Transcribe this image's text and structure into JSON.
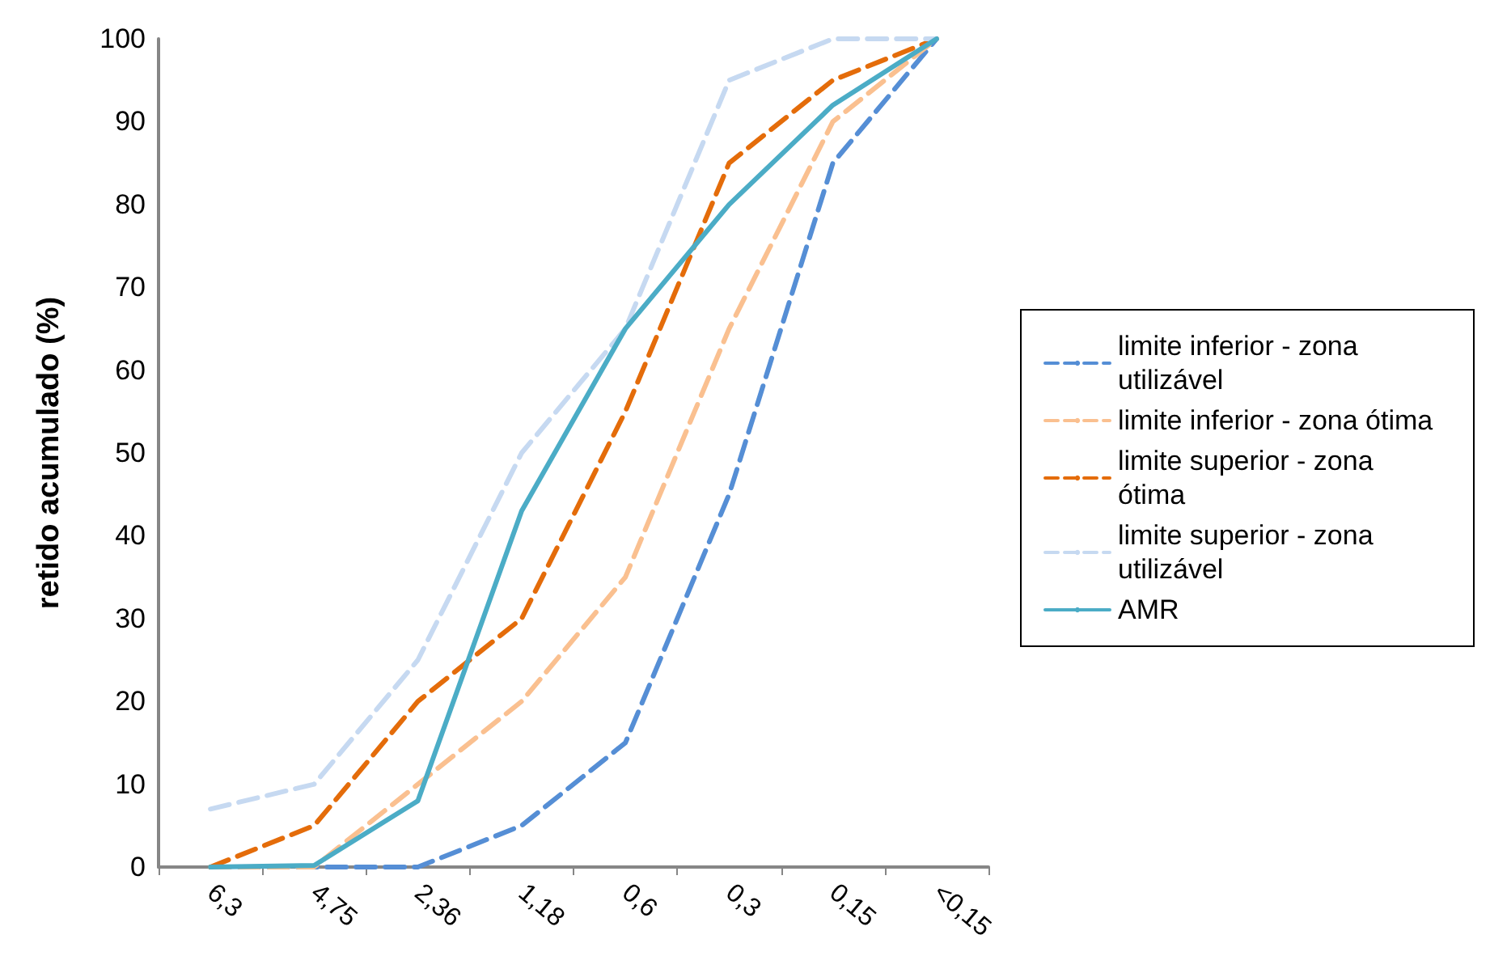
{
  "chart_data": {
    "type": "line",
    "ylabel": "retido acumulado (%)",
    "categories": [
      "6,3",
      "4,75",
      "2,36",
      "1,18",
      "0,6",
      "0,3",
      "0,15",
      "<0,15"
    ],
    "ylim": [
      0,
      100
    ],
    "yticks": [
      0,
      10,
      20,
      30,
      40,
      50,
      60,
      70,
      80,
      90,
      100
    ],
    "grid": false,
    "legend": "right",
    "marker": "none",
    "series": [
      {
        "name": "limite inferior - zona utilizável",
        "color": "#558ed5",
        "line_style": "dashed",
        "values": [
          0,
          0,
          0,
          5,
          15,
          45,
          85,
          100
        ]
      },
      {
        "name": "limite inferior - zona ótima",
        "color": "#fac090",
        "line_style": "dashed",
        "values": [
          0,
          0,
          10,
          20,
          35,
          65,
          90,
          100
        ]
      },
      {
        "name": "limite superior - zona ótima",
        "color": "#e46c0a",
        "line_style": "dashed",
        "values": [
          0,
          5,
          20,
          30,
          55,
          85,
          95,
          100
        ]
      },
      {
        "name": "limite superior - zona utilizável",
        "color": "#c6d9f1",
        "line_style": "dashed",
        "values": [
          7,
          10,
          25,
          50,
          65,
          95,
          100,
          100
        ]
      },
      {
        "name": "AMR",
        "color": "#4bacc6",
        "line_style": "solid",
        "values": [
          0,
          0.2,
          8,
          43,
          65,
          80,
          92,
          100
        ]
      }
    ]
  }
}
